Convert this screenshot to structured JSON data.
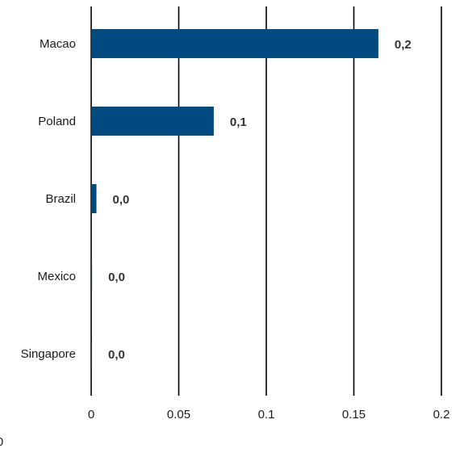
{
  "chart_data": {
    "type": "bar",
    "orientation": "horizontal",
    "categories": [
      "Macao",
      "Poland",
      "Brazil",
      "Mexico",
      "Singapore"
    ],
    "values": [
      0.164,
      0.07,
      0.003,
      0.0005,
      0.0001
    ],
    "data_labels": [
      "0,2",
      "0,1",
      "0,0",
      "0,0",
      "0,0"
    ],
    "xlim": [
      0,
      0.2
    ],
    "x_ticks": [
      0,
      0.05,
      0.1,
      0.15,
      0.2
    ],
    "x_tick_labels": [
      "0",
      "0.05",
      "0.1",
      "0.15",
      "0.2"
    ],
    "grid": "vertical",
    "bar_color": "#004a80",
    "grid_color": "#000000",
    "title": "",
    "xlabel": "",
    "ylabel": "",
    "legend": "none"
  },
  "corner_text": "0"
}
